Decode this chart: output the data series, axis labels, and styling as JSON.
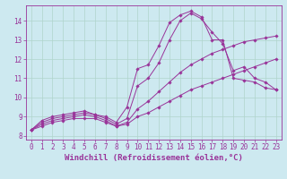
{
  "background_color": "#cde9f0",
  "line_color": "#993399",
  "grid_color": "#b0d4cc",
  "xlabel": "Windchill (Refroidissement éolien,°C)",
  "xlabel_fontsize": 6.5,
  "tick_fontsize": 5.5,
  "xlim": [
    -0.5,
    23.5
  ],
  "ylim": [
    7.8,
    14.8
  ],
  "yticks": [
    8,
    9,
    10,
    11,
    12,
    13,
    14
  ],
  "xticks": [
    0,
    1,
    2,
    3,
    4,
    5,
    6,
    7,
    8,
    9,
    10,
    11,
    12,
    13,
    14,
    15,
    16,
    17,
    18,
    19,
    20,
    21,
    22,
    23
  ],
  "line1_x": [
    0,
    1,
    2,
    3,
    4,
    5,
    6,
    7,
    8,
    9,
    10,
    11,
    12,
    13,
    14,
    15,
    16,
    17,
    18,
    19,
    20,
    21,
    22,
    23
  ],
  "line1_y": [
    8.3,
    8.8,
    9.0,
    9.1,
    9.2,
    9.3,
    9.1,
    9.0,
    8.7,
    9.5,
    11.5,
    11.7,
    12.7,
    13.9,
    14.3,
    14.5,
    14.2,
    13.0,
    13.0,
    11.0,
    10.9,
    10.8,
    10.5,
    10.4
  ],
  "line2_x": [
    0,
    1,
    2,
    3,
    4,
    5,
    6,
    7,
    8,
    9,
    10,
    11,
    12,
    13,
    14,
    15,
    16,
    17,
    18,
    19,
    20,
    21,
    22,
    23
  ],
  "line2_y": [
    8.3,
    8.7,
    8.9,
    9.0,
    9.1,
    9.2,
    9.1,
    8.9,
    8.6,
    8.9,
    10.6,
    11.0,
    11.8,
    13.0,
    14.0,
    14.4,
    14.1,
    13.4,
    12.8,
    11.4,
    11.6,
    11.0,
    10.8,
    10.4
  ],
  "line3_x": [
    0,
    1,
    2,
    3,
    4,
    5,
    6,
    7,
    8,
    9,
    10,
    11,
    12,
    13,
    14,
    15,
    16,
    17,
    18,
    19,
    20,
    21,
    22,
    23
  ],
  "line3_y": [
    8.3,
    8.6,
    8.8,
    8.9,
    9.0,
    9.1,
    9.0,
    8.8,
    8.5,
    8.7,
    9.4,
    9.8,
    10.3,
    10.8,
    11.3,
    11.7,
    12.0,
    12.3,
    12.5,
    12.7,
    12.9,
    13.0,
    13.1,
    13.2
  ],
  "line4_x": [
    0,
    1,
    2,
    3,
    4,
    5,
    6,
    7,
    8,
    9,
    10,
    11,
    12,
    13,
    14,
    15,
    16,
    17,
    18,
    19,
    20,
    21,
    22,
    23
  ],
  "line4_y": [
    8.3,
    8.5,
    8.7,
    8.8,
    8.9,
    8.9,
    8.9,
    8.7,
    8.5,
    8.6,
    9.0,
    9.2,
    9.5,
    9.8,
    10.1,
    10.4,
    10.6,
    10.8,
    11.0,
    11.2,
    11.4,
    11.6,
    11.8,
    12.0
  ]
}
